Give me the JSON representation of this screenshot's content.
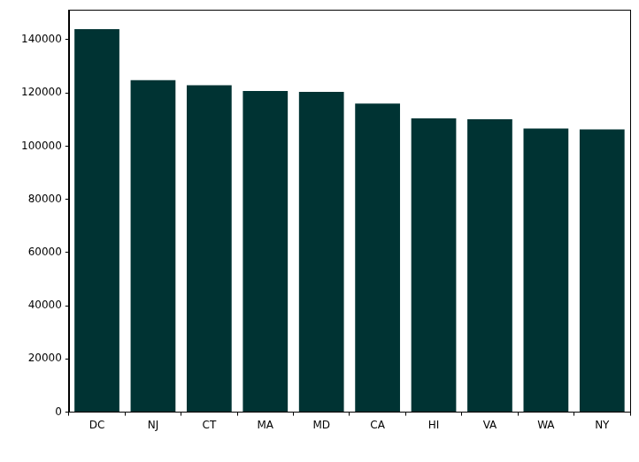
{
  "chart_data": {
    "type": "bar",
    "categories": [
      "DC",
      "NJ",
      "CT",
      "MA",
      "MD",
      "CA",
      "HI",
      "VA",
      "WA",
      "NY"
    ],
    "values": [
      144000,
      124800,
      122900,
      120700,
      120400,
      116000,
      110400,
      110100,
      106600,
      106300
    ],
    "color": "#003333",
    "ylim": [
      0,
      151200
    ],
    "yticks": [
      0,
      20000,
      40000,
      60000,
      80000,
      100000,
      120000,
      140000
    ],
    "grid": false
  }
}
